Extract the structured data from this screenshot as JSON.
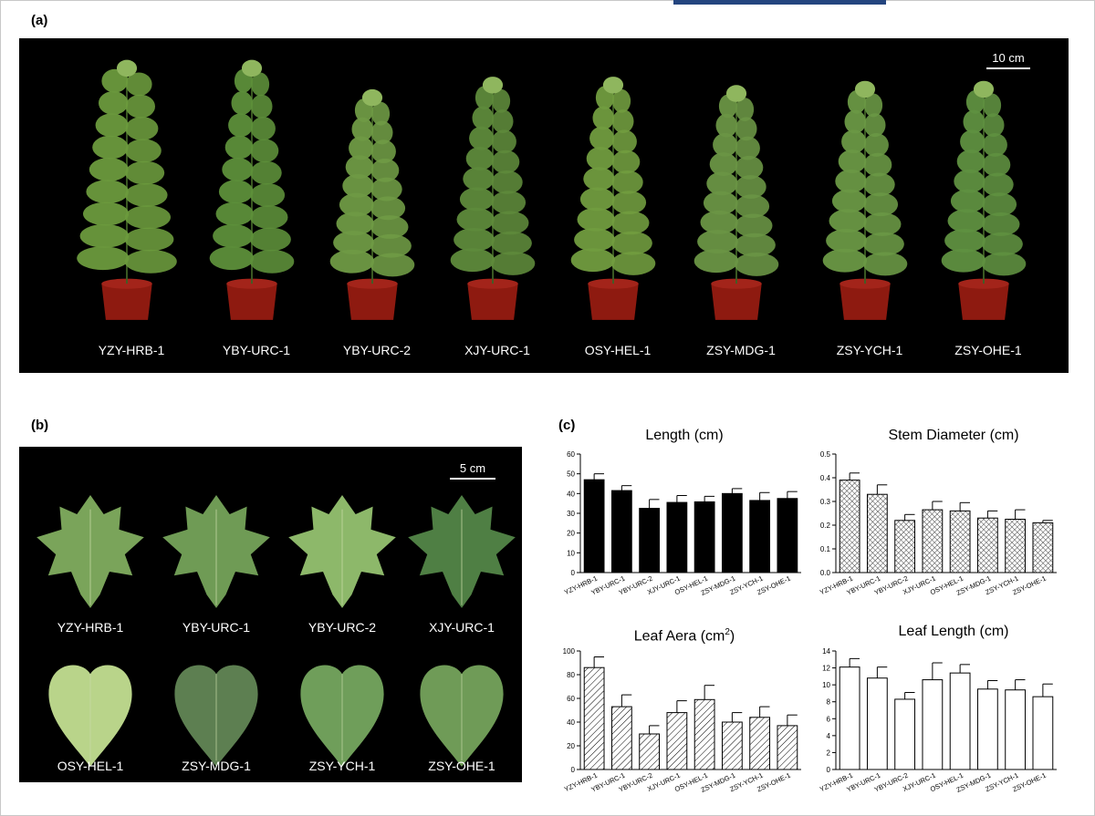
{
  "panels": {
    "a": "(a)",
    "b": "(b)",
    "c": "(c)"
  },
  "photo_a": {
    "scale": "10 cm",
    "labels": [
      "YZY-HRB-1",
      "YBY-URC-1",
      "YBY-URC-2",
      "XJY-URC-1",
      "OSY-HEL-1",
      "ZSY-MDG-1",
      "ZSY-YCH-1",
      "ZSY-OHE-1"
    ]
  },
  "photo_b": {
    "scale": "5 cm",
    "labels": [
      "YZY-HRB-1",
      "YBY-URC-1",
      "YBY-URC-2",
      "XJY-URC-1",
      "OSY-HEL-1",
      "ZSY-MDG-1",
      "ZSY-YCH-1",
      "ZSY-OHE-1"
    ]
  },
  "chart_titles": {
    "length": "Length (cm)",
    "stem": "Stem Diameter (cm)",
    "leaf_area_main": "Leaf Aera (cm",
    "leaf_area_sup": "2",
    "leaf_area_tail": ")",
    "leaf_length": "Leaf Length (cm)"
  },
  "colors": {
    "photo_bg": "#000000",
    "pot": "#8e1a10",
    "leaf": "#5f9a3a"
  },
  "chart_data": [
    {
      "type": "bar",
      "id": "length",
      "fill": "solid-black",
      "title": "Length (cm)",
      "categories": [
        "YZY-HRB-1",
        "YBY-URC-1",
        "YBY-URC-2",
        "XJY-URC-1",
        "OSY-HEL-1",
        "ZSY-MDG-1",
        "ZSY-YCH-1",
        "ZSY-OHE-1"
      ],
      "values": [
        47,
        41.5,
        32.5,
        35.5,
        35.8,
        40,
        36.5,
        37.5
      ],
      "errors": [
        3,
        2.5,
        4.5,
        3.5,
        2.8,
        2.5,
        4,
        3.5
      ],
      "ylim": [
        0,
        60
      ],
      "yticks": [
        "0",
        "10",
        "20",
        "30",
        "40",
        "50",
        "60"
      ]
    },
    {
      "type": "bar",
      "id": "stem",
      "fill": "crosshatch",
      "title": "Stem Diameter (cm)",
      "categories": [
        "YZY-HRB-1",
        "YBY-URC-1",
        "YBY-URC-2",
        "XJY-URC-1",
        "OSY-HEL-1",
        "ZSY-MDG-1",
        "ZSY-YCH-1",
        "ZSY-OHE-1"
      ],
      "values": [
        0.39,
        0.33,
        0.22,
        0.265,
        0.26,
        0.23,
        0.225,
        0.21
      ],
      "errors": [
        0.03,
        0.04,
        0.025,
        0.035,
        0.035,
        0.03,
        0.04,
        0.01
      ],
      "ylim": [
        0,
        0.5
      ],
      "yticks": [
        "0.0",
        "0.1",
        "0.2",
        "0.3",
        "0.4",
        "0.5"
      ]
    },
    {
      "type": "bar",
      "id": "leaf_area",
      "fill": "diagonal-hatch",
      "title": "Leaf Aera (cm2)",
      "categories": [
        "YZY-HRB-1",
        "YBY-URC-1",
        "YBY-URC-2",
        "XJY-URC-1",
        "OSY-HEL-1",
        "ZSY-MDG-1",
        "ZSY-YCH-1",
        "ZSY-OHE-1"
      ],
      "values": [
        86,
        53,
        30,
        48,
        59,
        40,
        44,
        37
      ],
      "errors": [
        9,
        10,
        7,
        10,
        12,
        8,
        9,
        9
      ],
      "ylim": [
        0,
        100
      ],
      "yticks": [
        "0",
        "20",
        "40",
        "60",
        "80",
        "100"
      ]
    },
    {
      "type": "bar",
      "id": "leaf_length",
      "fill": "white",
      "title": "Leaf Length (cm)",
      "categories": [
        "YZY-HRB-1",
        "YBY-URC-1",
        "YBY-URC-2",
        "XJY-URC-1",
        "OSY-HEL-1",
        "ZSY-MDG-1",
        "ZSY-YCH-1",
        "ZSY-OHE-1"
      ],
      "values": [
        12.1,
        10.8,
        8.3,
        10.6,
        11.4,
        9.5,
        9.4,
        8.6
      ],
      "errors": [
        1,
        1.3,
        0.8,
        2,
        1,
        1,
        1.2,
        1.5
      ],
      "ylim": [
        0,
        14
      ],
      "yticks": [
        "0",
        "2",
        "4",
        "6",
        "8",
        "10",
        "12",
        "14"
      ]
    }
  ]
}
